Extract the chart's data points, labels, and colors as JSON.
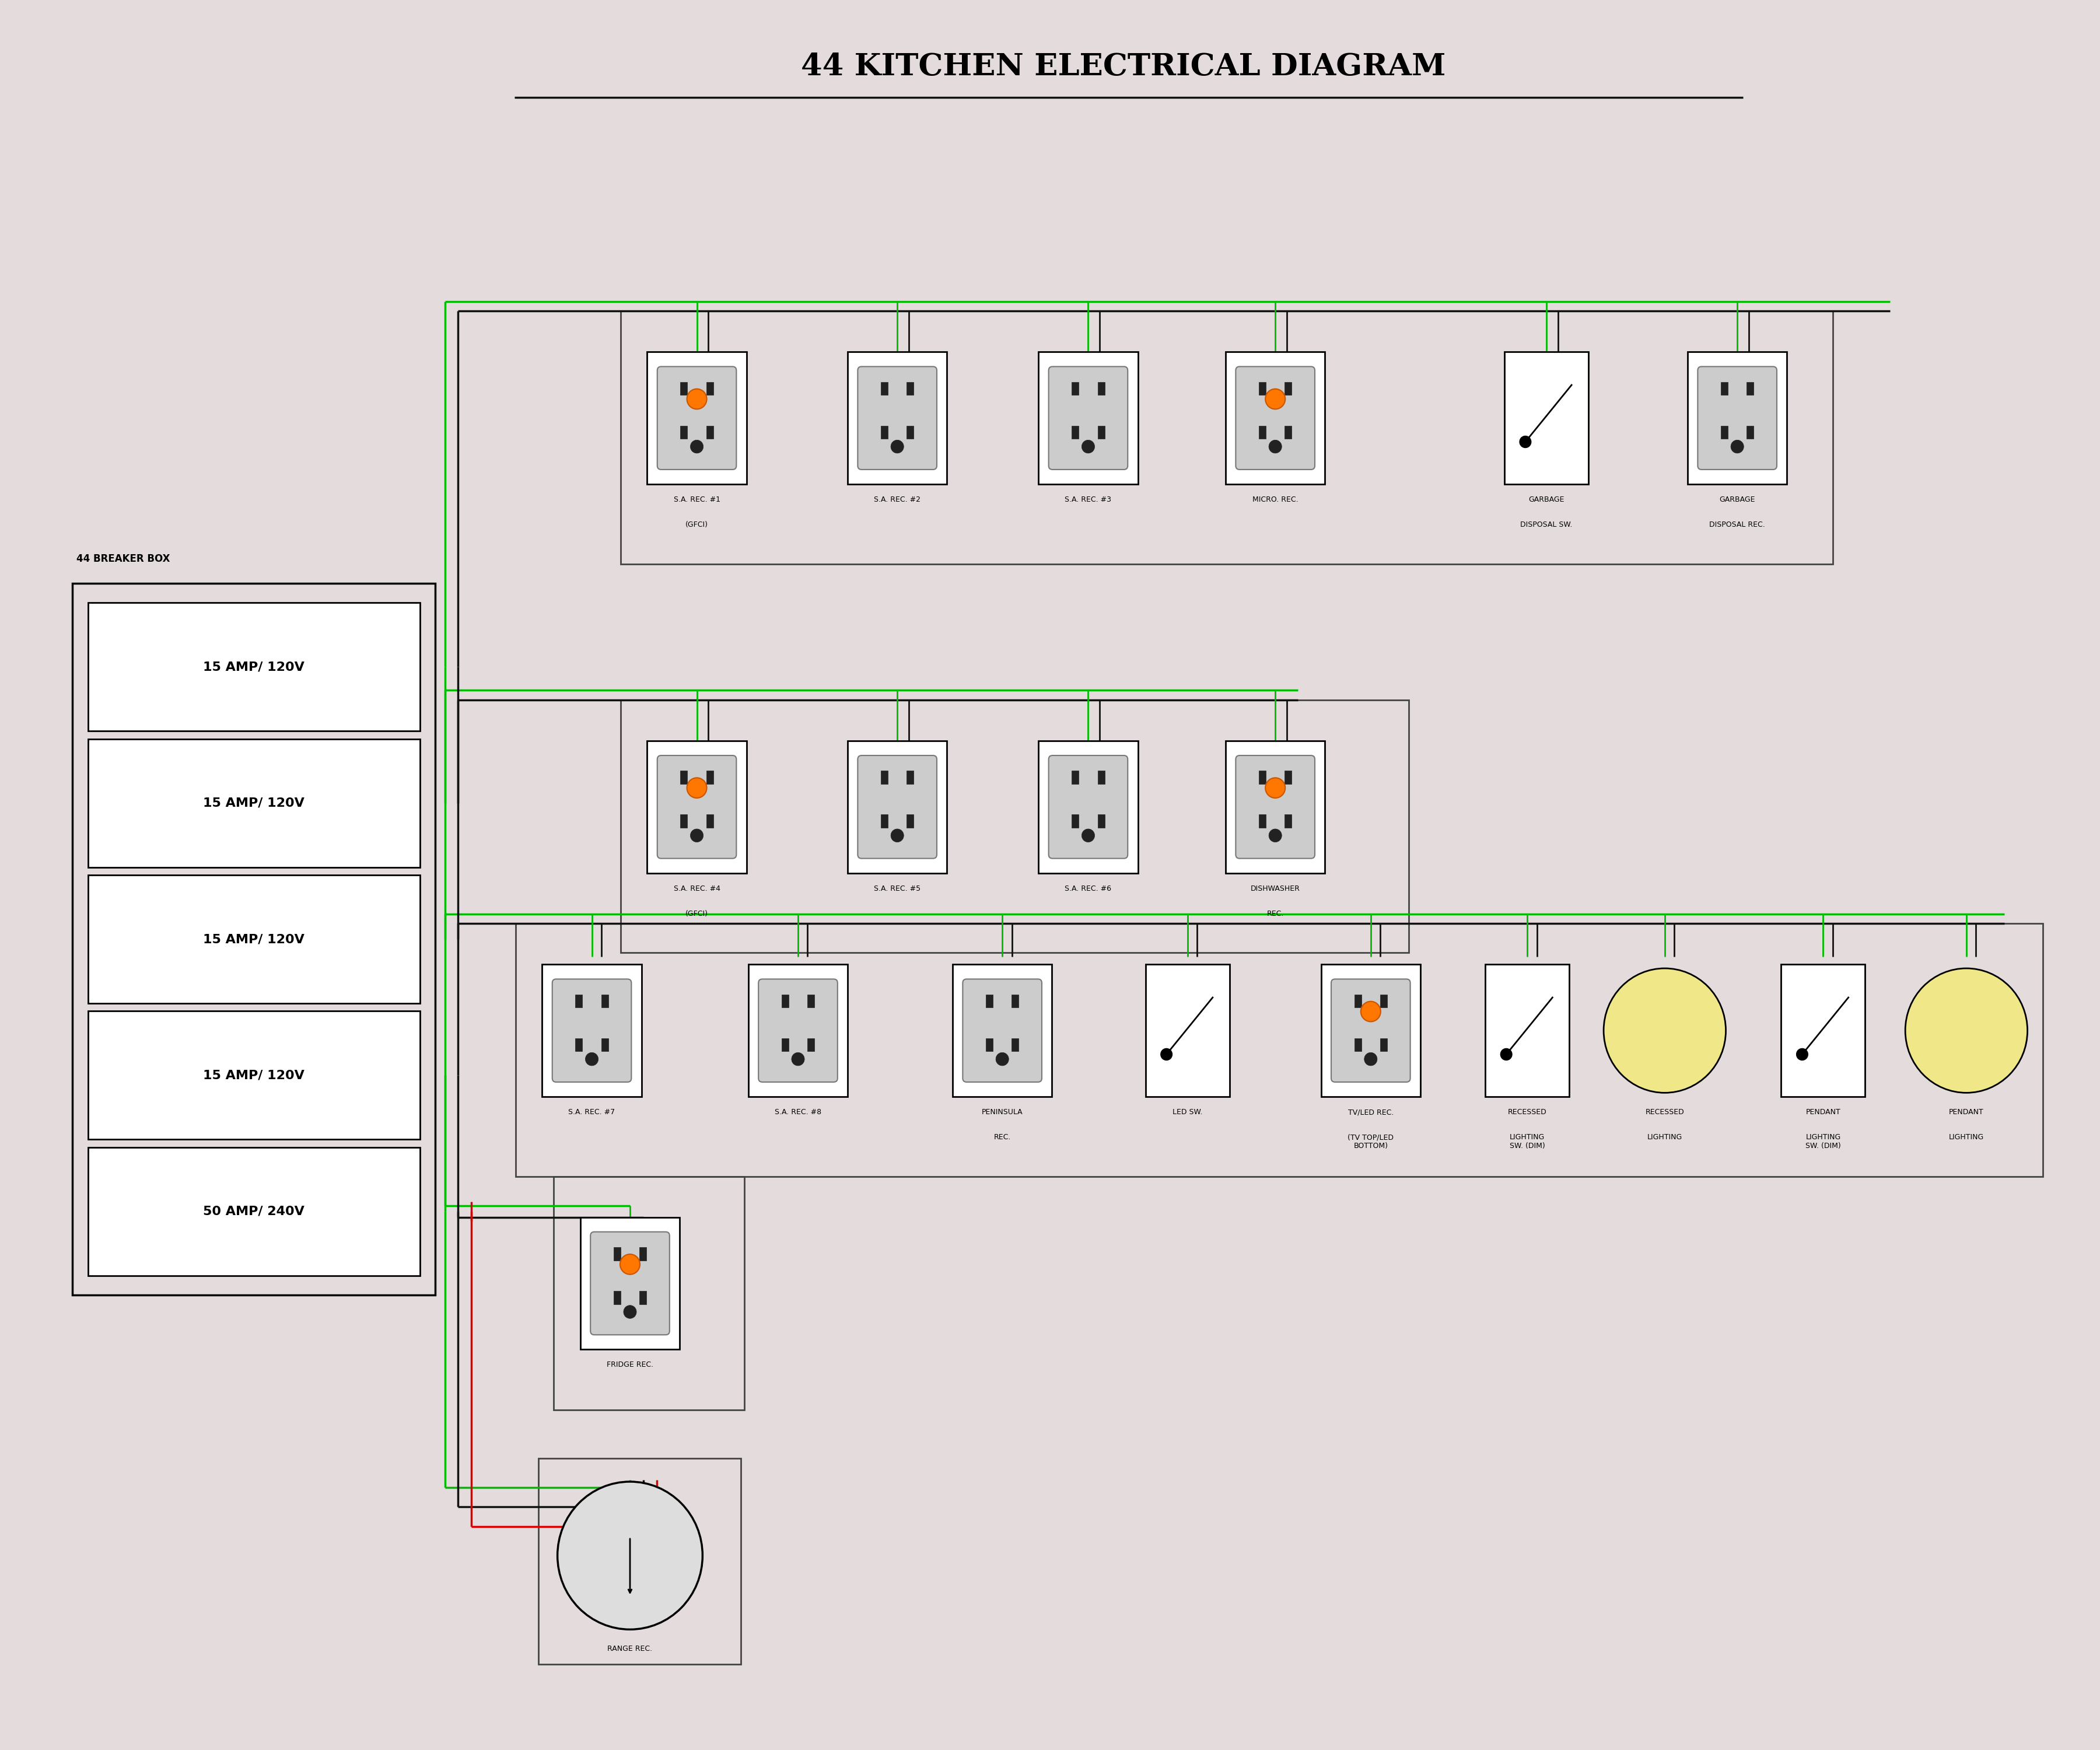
{
  "title": "44 KITCHEN ELECTRICAL DIAGRAM",
  "bg_color": "#e4dcdc",
  "title_fontsize": 38,
  "breaker_box_label": "44 BREAKER BOX",
  "breakers": [
    "15 AMP/ 120V",
    "15 AMP/ 120V",
    "15 AMP/ 120V",
    "15 AMP/ 120V",
    "50 AMP/ 240V"
  ],
  "wire_green": "#00bb00",
  "wire_black": "#111111",
  "wire_red": "#dd0000",
  "outlet_fill": "#ffffff",
  "outlet_border": "#111111",
  "switch_fill": "#ffffff",
  "switch_border": "#111111",
  "label_fontsize": 9,
  "breaker_fontsize": 16
}
